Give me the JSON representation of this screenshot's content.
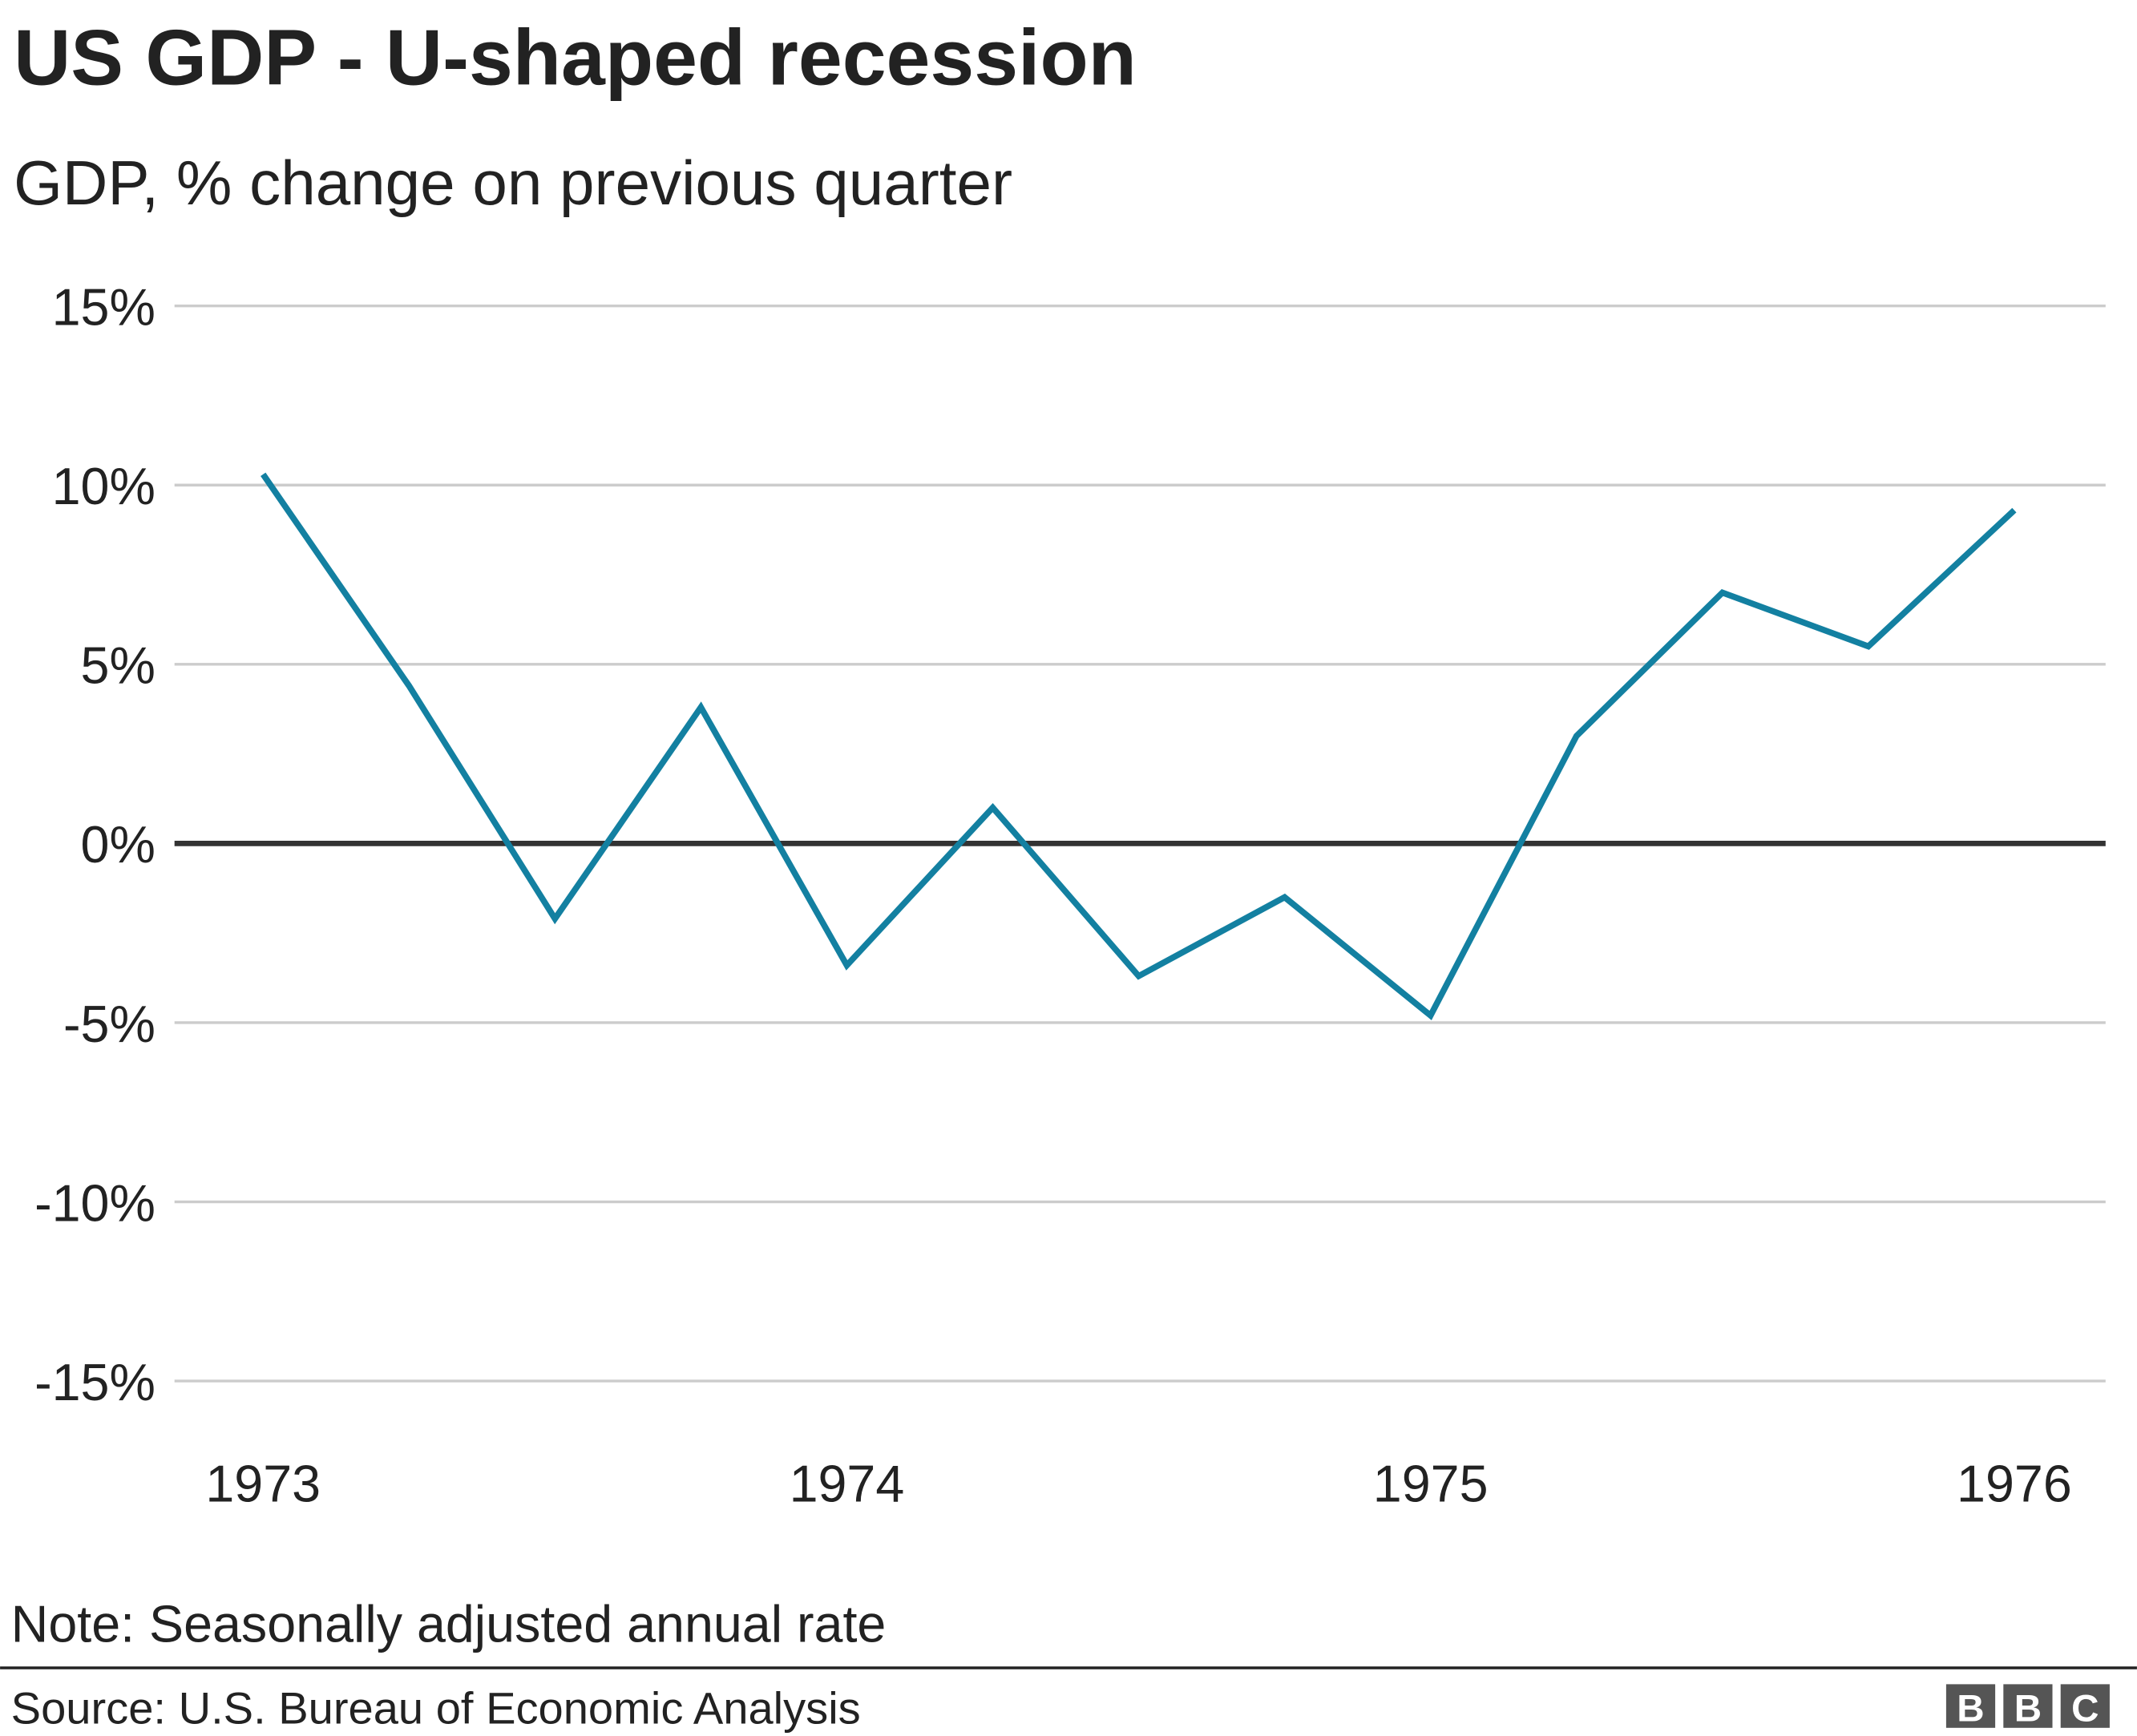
{
  "chart_data": {
    "type": "line",
    "title": "US GDP - U-shaped recession",
    "subtitle": "GDP, % change on previous quarter",
    "xlabel": "",
    "ylabel": "",
    "x": [
      "1973 Q1",
      "1973 Q2",
      "1973 Q3",
      "1973 Q4",
      "1974 Q1",
      "1974 Q2",
      "1974 Q3",
      "1974 Q4",
      "1975 Q1",
      "1975 Q2",
      "1975 Q3",
      "1975 Q4",
      "1976 Q1"
    ],
    "values": [
      10.3,
      4.4,
      -2.1,
      3.8,
      -3.4,
      1.0,
      -3.7,
      -1.5,
      -4.8,
      3.0,
      7.0,
      5.5,
      9.3
    ],
    "ylim": [
      -15,
      15
    ],
    "yticks": [
      15,
      10,
      5,
      0,
      -5,
      -10,
      -15
    ],
    "ytick_labels": [
      "15%",
      "10%",
      "5%",
      "0%",
      "-5%",
      "-10%",
      "-15%"
    ],
    "xtick_labels": [
      "1973",
      "1974",
      "1975",
      "1976"
    ],
    "grid": true,
    "line_color": "#1380a1",
    "note": "Note: Seasonally adjusted annual rate",
    "source": "Source: U.S. Bureau of Economic Analysis"
  },
  "logo": "BBC"
}
